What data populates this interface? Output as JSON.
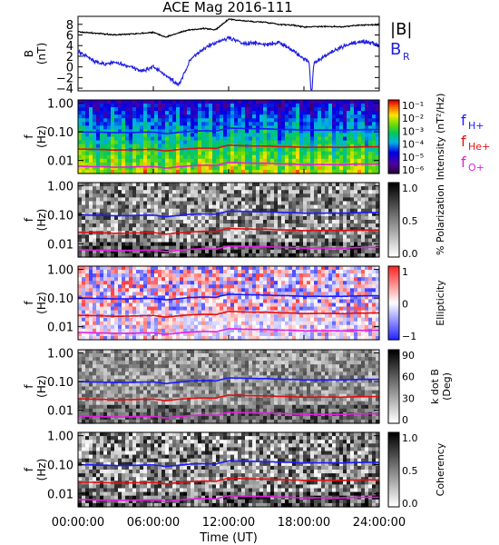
{
  "title": "ACE Mag 2016-111",
  "xlabel": "Time (UT)",
  "xticks": [
    "00:00:00",
    "06:00:00",
    "12:00:00",
    "18:00:00",
    "24:00:00"
  ],
  "colors": {
    "total_field": "#000000",
    "radial_field": "#1f1fe0",
    "f_hplus": "#1a1aff",
    "f_heplus": "#e01010",
    "f_oplus": "#e020e0"
  },
  "chart_data": [
    {
      "type": "line",
      "ylabel": [
        "B",
        "(nT)"
      ],
      "ylim": [
        -4.5,
        9.5
      ],
      "yticks": [
        "8",
        "6",
        "4",
        "2",
        "0",
        "−2",
        "−4"
      ],
      "ytick_values": [
        8,
        6,
        4,
        2,
        0,
        -2,
        -4
      ],
      "x_hours": [
        0,
        1,
        2,
        3,
        4,
        5,
        6,
        7,
        8,
        9,
        10,
        11,
        12,
        13,
        14,
        15,
        16,
        17,
        18,
        19,
        20,
        21,
        22,
        23,
        24
      ],
      "series": [
        {
          "name": "|B|",
          "color_key": "total_field",
          "values": [
            6.6,
            6.4,
            6.2,
            6.0,
            6.2,
            6.3,
            6.5,
            5.6,
            6.4,
            7.0,
            7.2,
            7.0,
            9.0,
            8.7,
            8.5,
            8.4,
            8.0,
            7.9,
            7.5,
            7.6,
            7.6,
            7.5,
            7.8,
            7.9,
            7.9
          ]
        },
        {
          "name": "B",
          "name_sub": "R",
          "color_key": "radial_field",
          "values": [
            3.0,
            1.5,
            0.5,
            0.8,
            0.2,
            -0.8,
            0.0,
            -1.5,
            -3.5,
            1.5,
            3.5,
            4.5,
            5.5,
            4.5,
            4.5,
            4.2,
            4.6,
            3.3,
            1.5,
            1.0,
            2.5,
            3.8,
            4.5,
            4.8,
            4.0
          ]
        }
      ]
    },
    {
      "type": "heatmap",
      "ylabel": [
        "f",
        "(Hz)"
      ],
      "yticks": [
        "1.00",
        "0.10",
        "0.01"
      ],
      "ytick_values": [
        1.0,
        0.1,
        0.01
      ],
      "colorbar": {
        "label": "Intensity (nT²/Hz)",
        "ticks": [
          "10⁻¹",
          "10⁻²",
          "10⁻³",
          "10⁻⁴",
          "10⁻⁵",
          "10⁻⁶"
        ],
        "scale": "rainbow"
      },
      "legend": [
        {
          "text": "f",
          "sub": "H+",
          "color_key": "f_hplus"
        },
        {
          "text": "f",
          "sub": "He+",
          "color_key": "f_heplus"
        },
        {
          "text": "f",
          "sub": "O+",
          "color_key": "f_oplus"
        }
      ]
    },
    {
      "type": "heatmap",
      "ylabel": [
        "f",
        "(Hz)"
      ],
      "yticks": [
        "1.00",
        "0.10",
        "0.01"
      ],
      "ytick_values": [
        1.0,
        0.1,
        0.01
      ],
      "colorbar": {
        "label": "% Polarization",
        "ticks": [
          "1.0",
          "0.5",
          "0.0"
        ],
        "scale": "gray"
      }
    },
    {
      "type": "heatmap",
      "ylabel": [
        "f",
        "(Hz)"
      ],
      "yticks": [
        "1.00",
        "0.10",
        "0.01"
      ],
      "ytick_values": [
        1.0,
        0.1,
        0.01
      ],
      "colorbar": {
        "label": "Ellipticity",
        "ticks": [
          "1",
          "0",
          "−1"
        ],
        "scale": "bwr"
      }
    },
    {
      "type": "heatmap",
      "ylabel": [
        "f",
        "(Hz)"
      ],
      "yticks": [
        "1.00",
        "0.10",
        "0.01"
      ],
      "ytick_values": [
        1.0,
        0.1,
        0.01
      ],
      "colorbar": {
        "label": "k dot B",
        "label2": "(Deg)",
        "ticks": [
          "90",
          "60",
          "30",
          "0"
        ],
        "scale": "gray"
      }
    },
    {
      "type": "heatmap",
      "ylabel": [
        "f",
        "(Hz)"
      ],
      "yticks": [
        "1.00",
        "0.10",
        "0.01"
      ],
      "ytick_values": [
        1.0,
        0.1,
        0.01
      ],
      "colorbar": {
        "label": "Coherency",
        "ticks": [
          "1.0",
          "0.5",
          "0.0"
        ],
        "scale": "gray"
      }
    }
  ],
  "gyrofrequency_lines_hz": {
    "x_hours": [
      0,
      1,
      2,
      3,
      4,
      5,
      6,
      7,
      8,
      9,
      10,
      11,
      12,
      13,
      14,
      15,
      16,
      17,
      18,
      19,
      20,
      21,
      22,
      23,
      24
    ],
    "f_hplus": [
      0.1,
      0.098,
      0.096,
      0.093,
      0.094,
      0.096,
      0.098,
      0.086,
      0.095,
      0.105,
      0.108,
      0.106,
      0.135,
      0.132,
      0.129,
      0.127,
      0.122,
      0.12,
      0.114,
      0.115,
      0.115,
      0.114,
      0.118,
      0.12,
      0.12
    ],
    "f_heplus": [
      0.025,
      0.0245,
      0.024,
      0.023,
      0.0235,
      0.024,
      0.0245,
      0.0215,
      0.024,
      0.026,
      0.027,
      0.0265,
      0.034,
      0.033,
      0.032,
      0.032,
      0.0305,
      0.03,
      0.0285,
      0.029,
      0.029,
      0.0285,
      0.0295,
      0.03,
      0.03
    ],
    "f_oplus": [
      0.0063,
      0.0061,
      0.006,
      0.0058,
      0.0059,
      0.006,
      0.0061,
      0.0054,
      0.006,
      0.0065,
      0.0068,
      0.0066,
      0.0084,
      0.0082,
      0.008,
      0.008,
      0.0076,
      0.0075,
      0.0071,
      0.0072,
      0.0072,
      0.0071,
      0.0074,
      0.0075,
      0.0075
    ]
  }
}
